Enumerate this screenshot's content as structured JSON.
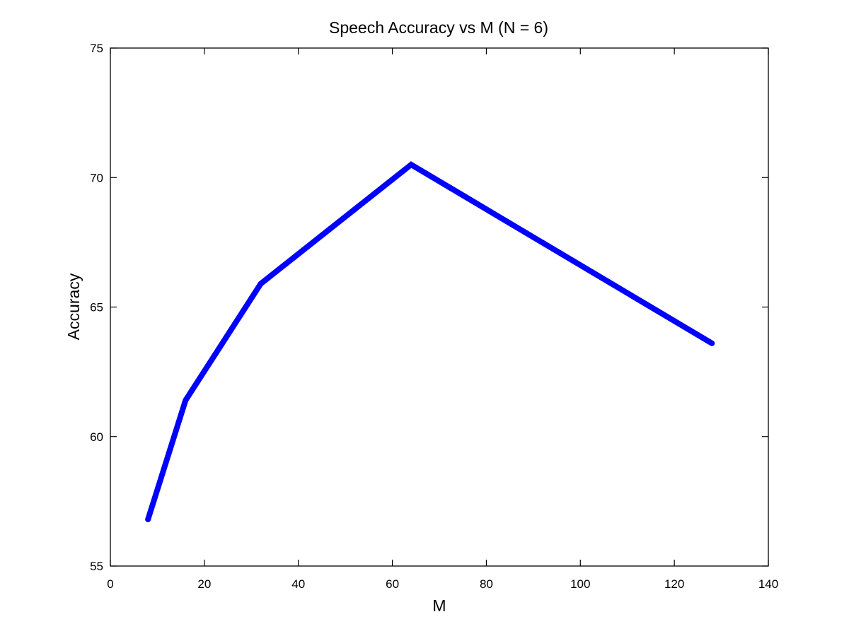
{
  "chart_data": {
    "type": "line",
    "title": "Speech Accuracy vs M (N = 6)",
    "xlabel": "M",
    "ylabel": "Accuracy",
    "xlim": [
      0,
      140
    ],
    "ylim": [
      55,
      75
    ],
    "xticks": [
      0,
      20,
      40,
      60,
      80,
      100,
      120,
      140
    ],
    "yticks": [
      55,
      60,
      65,
      70,
      75
    ],
    "grid": false,
    "series": [
      {
        "color": "#0000ff",
        "x": [
          8,
          16,
          32,
          64,
          128
        ],
        "y": [
          56.8,
          61.4,
          65.9,
          70.5,
          63.6
        ]
      }
    ]
  }
}
